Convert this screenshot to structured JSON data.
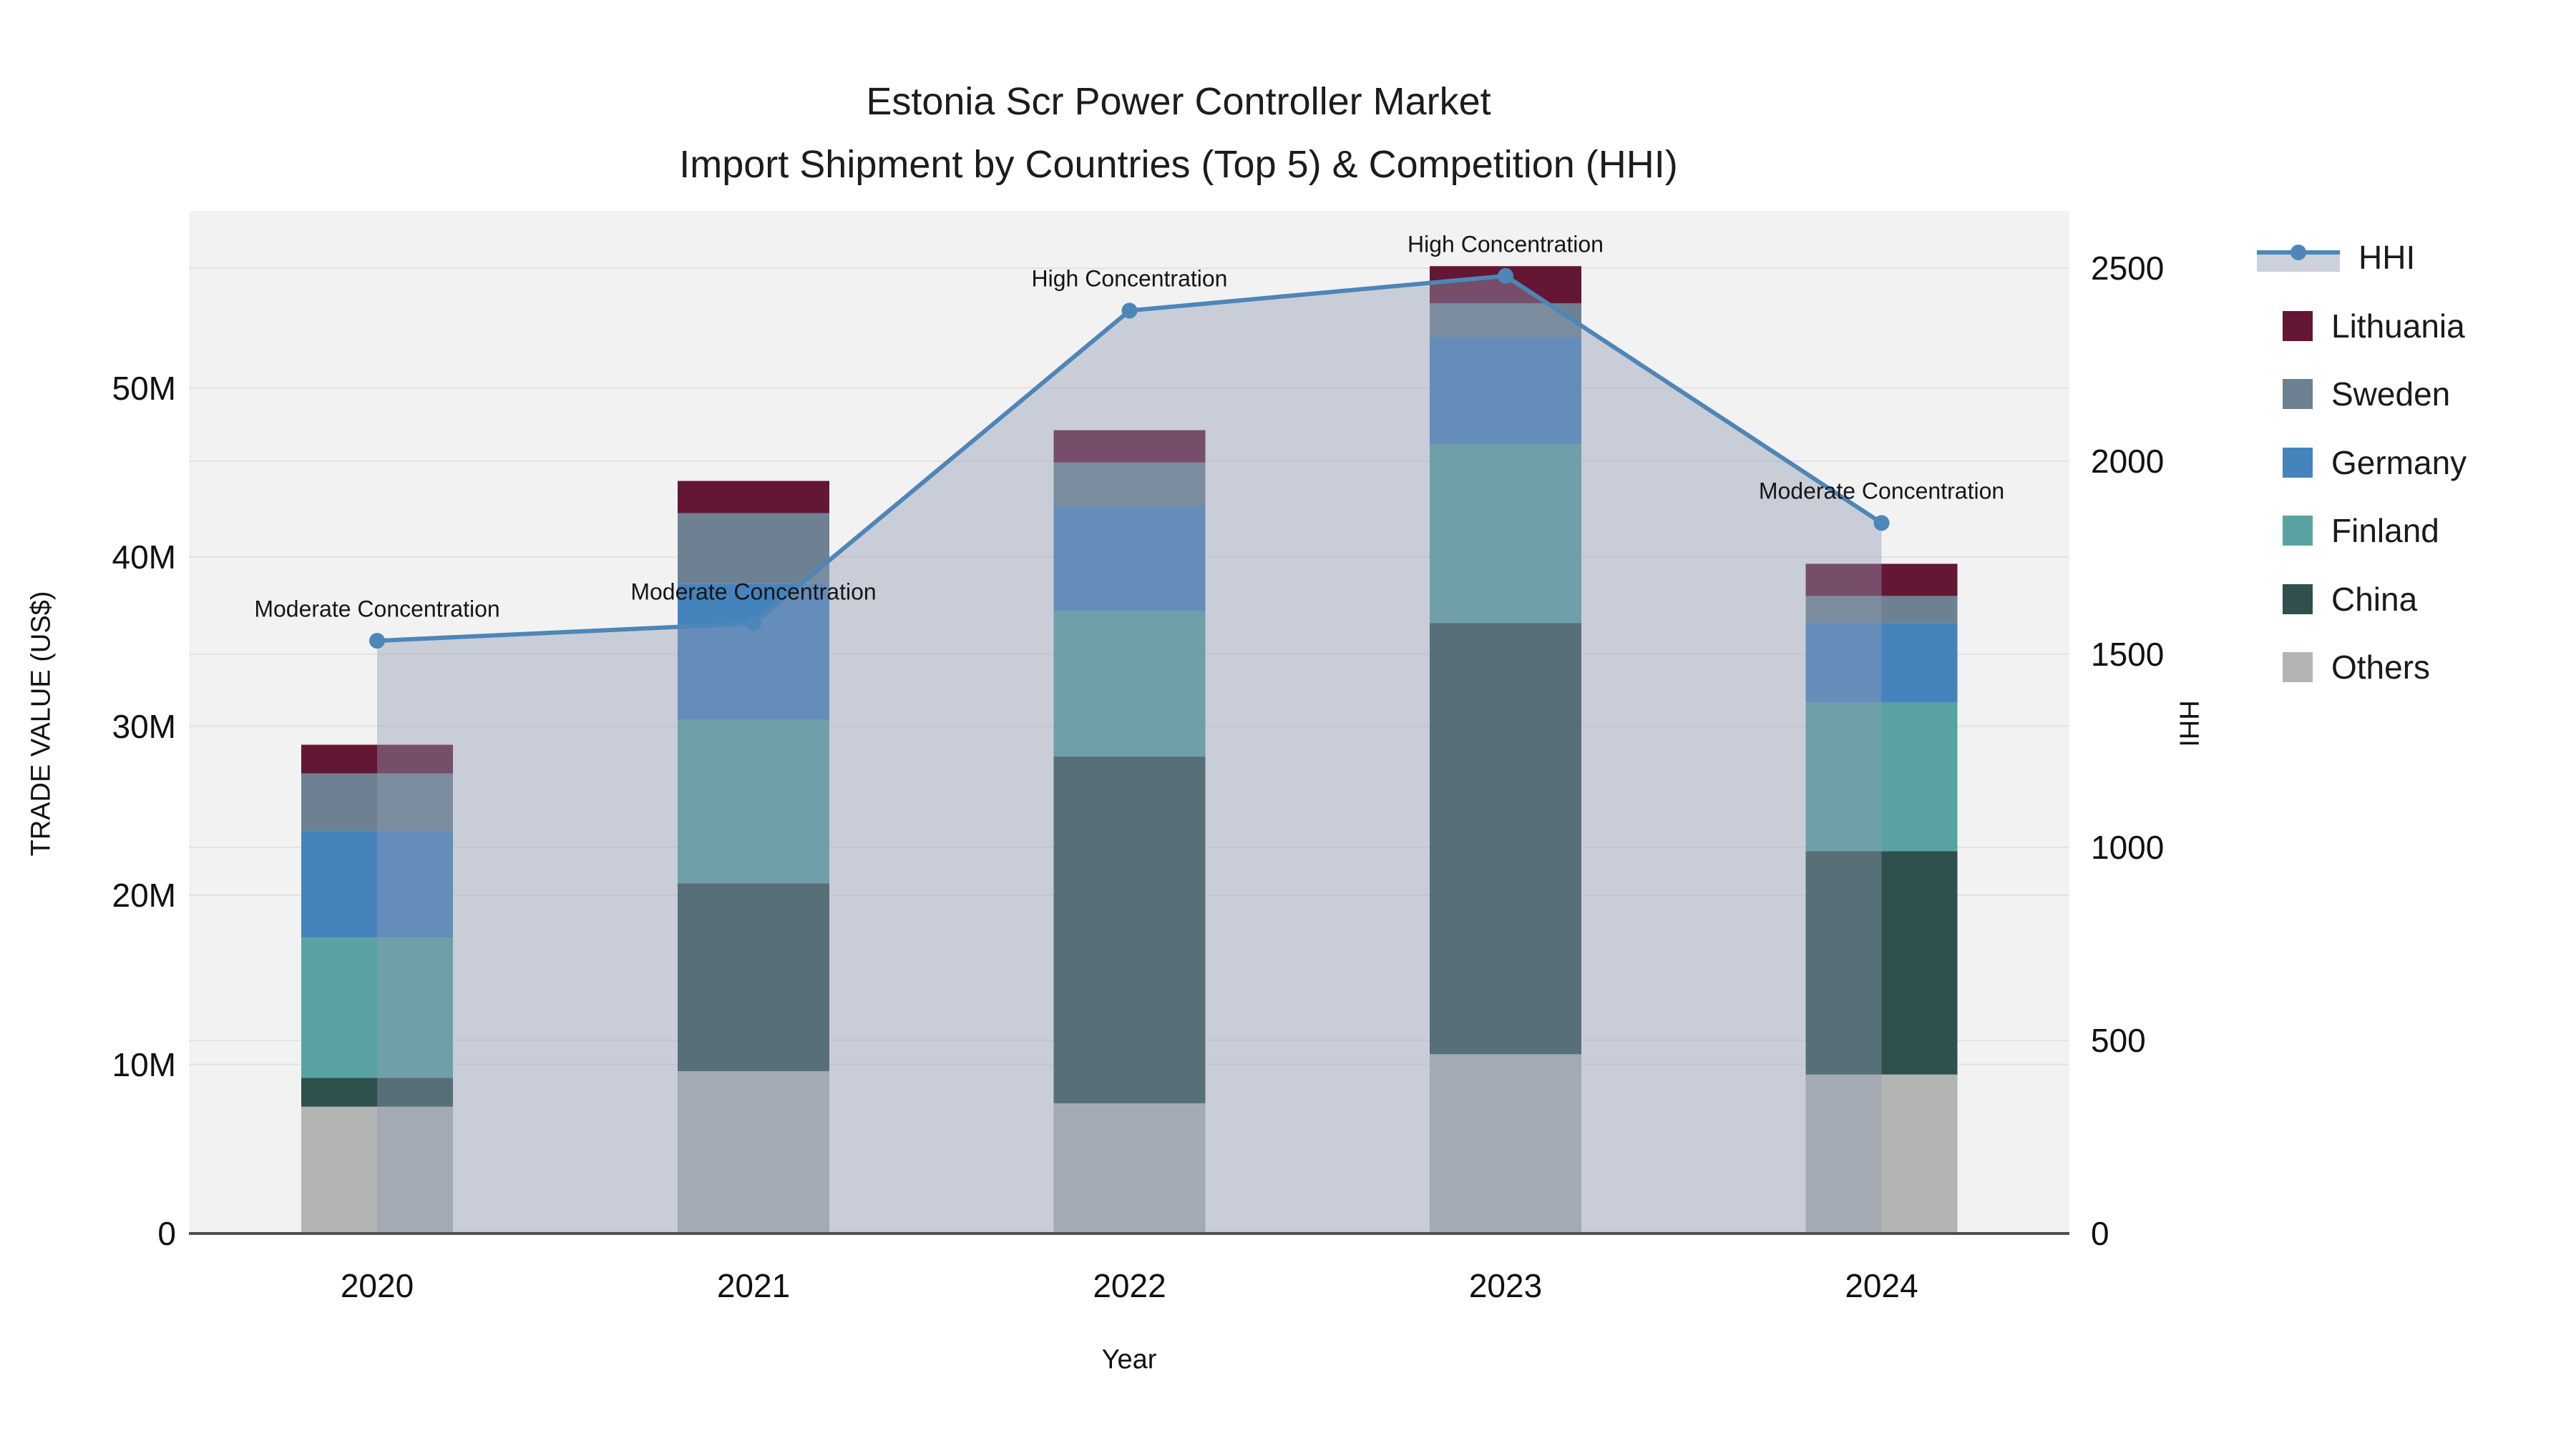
{
  "title": {
    "line1": "Estonia Scr Power Controller Market",
    "line2": "Import Shipment by Countries (Top 5) & Competition (HHI)"
  },
  "chart_data": {
    "type": "bar",
    "stacked": true,
    "subtype": "stacked bars with overlaid line+area on secondary axis",
    "categories": [
      "2020",
      "2021",
      "2022",
      "2023",
      "2024"
    ],
    "series": [
      {
        "name": "Others",
        "color": "#b3b5b3",
        "values": [
          7.5,
          9.6,
          7.7,
          10.6,
          9.4
        ]
      },
      {
        "name": "China",
        "color": "#2f504c",
        "values": [
          1.7,
          11.1,
          20.5,
          25.5,
          13.2
        ]
      },
      {
        "name": "Finland",
        "color": "#58a3a2",
        "values": [
          8.3,
          9.7,
          8.6,
          10.6,
          8.8
        ]
      },
      {
        "name": "Germany",
        "color": "#4583bd",
        "values": [
          6.3,
          8.0,
          6.2,
          6.3,
          4.7
        ]
      },
      {
        "name": "Sweden",
        "color": "#6e8192",
        "values": [
          3.4,
          4.2,
          2.6,
          2.0,
          1.6
        ]
      },
      {
        "name": "Lithuania",
        "color": "#641734",
        "values": [
          1.7,
          1.9,
          1.9,
          2.2,
          1.9
        ]
      }
    ],
    "bar_totals": [
      28.9,
      44.5,
      47.5,
      57.2,
      39.6
    ],
    "values_unit": "US$ millions (left axis)",
    "line_series": {
      "name": "HHI",
      "color": "#4d86b8",
      "area_color": "rgba(143,155,178,0.42)",
      "values": [
        1535,
        1580,
        2390,
        2480,
        1840
      ]
    },
    "annotations": [
      "Moderate Concentration",
      "Moderate Concentration",
      "High Concentration",
      "High Concentration",
      "Moderate Concentration"
    ],
    "xlabel": "Year",
    "ylabel_left": "TRADE VALUE (US$)",
    "ylabel_right": "HHI",
    "yticks_left": [
      "0",
      "10M",
      "20M",
      "30M",
      "40M",
      "50M"
    ],
    "yticks_right": [
      "0",
      "500",
      "1000",
      "1500",
      "2000",
      "2500"
    ],
    "ylim_left_millions": [
      0,
      60.5
    ],
    "ylim_right": [
      0,
      2650
    ],
    "grid": true,
    "legend_position": "right"
  },
  "legend": {
    "items": [
      "HHI",
      "Lithuania",
      "Sweden",
      "Germany",
      "Finland",
      "China",
      "Others"
    ]
  },
  "colors": {
    "plot_background": "#f2f2f2",
    "gridline": "#e3e3e3",
    "axis_line": "#4f4f4f",
    "text": "#111111"
  }
}
